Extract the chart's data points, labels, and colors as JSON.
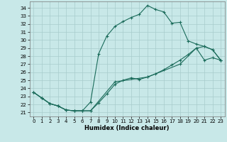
{
  "xlabel": "Humidex (Indice chaleur)",
  "bg_color": "#c8e8e8",
  "grid_color": "#a8cccc",
  "line_color": "#1a6b5a",
  "xlim": [
    -0.5,
    23.5
  ],
  "ylim": [
    20.5,
    34.8
  ],
  "yticks": [
    21,
    22,
    23,
    24,
    25,
    26,
    27,
    28,
    29,
    30,
    31,
    32,
    33,
    34
  ],
  "xticks": [
    0,
    1,
    2,
    3,
    4,
    5,
    6,
    7,
    8,
    9,
    10,
    11,
    12,
    13,
    14,
    15,
    16,
    17,
    18,
    19,
    20,
    21,
    22,
    23
  ],
  "line1_x": [
    0,
    1,
    2,
    3,
    4,
    5,
    6,
    7,
    8,
    9,
    10,
    11,
    12,
    13,
    14,
    15,
    16,
    17,
    18,
    19,
    20,
    21,
    22,
    23
  ],
  "line1_y": [
    23.5,
    22.8,
    22.1,
    21.8,
    21.3,
    21.2,
    21.2,
    22.3,
    28.3,
    30.5,
    31.7,
    32.3,
    32.8,
    33.2,
    34.3,
    33.8,
    33.5,
    32.1,
    32.2,
    29.9,
    29.5,
    29.2,
    28.8,
    27.5
  ],
  "line2_x": [
    0,
    1,
    2,
    3,
    4,
    5,
    6,
    7,
    8,
    9,
    10,
    11,
    12,
    13,
    14,
    15,
    16,
    17,
    18,
    19,
    20,
    21,
    22,
    23
  ],
  "line2_y": [
    23.5,
    22.8,
    22.1,
    21.8,
    21.3,
    21.2,
    21.2,
    21.2,
    22.2,
    23.3,
    24.5,
    25.0,
    25.3,
    25.1,
    25.4,
    25.8,
    26.3,
    26.9,
    27.5,
    28.2,
    29.0,
    27.5,
    27.8,
    27.5
  ],
  "line3_x": [
    0,
    1,
    2,
    3,
    4,
    5,
    6,
    7,
    10,
    14,
    18,
    20,
    21,
    22,
    23
  ],
  "line3_y": [
    23.5,
    22.8,
    22.1,
    21.8,
    21.3,
    21.2,
    21.2,
    21.2,
    24.8,
    25.4,
    27.0,
    29.0,
    29.2,
    28.8,
    27.5
  ]
}
